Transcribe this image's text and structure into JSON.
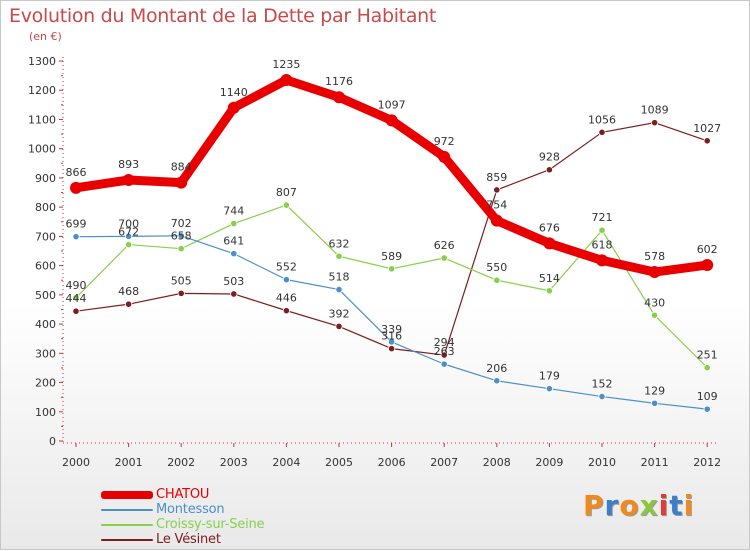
{
  "header": {
    "title": "Evolution du Montant de la Dette par Habitant",
    "unit": "(en €)"
  },
  "logo": {
    "letters": [
      "P",
      "r",
      "o",
      "x",
      "i",
      "t",
      "i"
    ],
    "colors": [
      "#f08a1c",
      "#3a7fc8",
      "#f08a1c",
      "#8cc63f",
      "#e53935",
      "#3a7fc8",
      "#f08a1c"
    ]
  },
  "chart_data": {
    "type": "line",
    "title": "Evolution du Montant de la Dette par Habitant",
    "ylabel": "(en €)",
    "xlabel": "",
    "ylim": [
      0,
      1300
    ],
    "yticks": [
      0,
      100,
      200,
      300,
      400,
      500,
      600,
      700,
      800,
      900,
      1000,
      1100,
      1200,
      1300
    ],
    "x": [
      "2000",
      "2001",
      "2002",
      "2003",
      "2004",
      "2005",
      "2006",
      "2007",
      "2008",
      "2009",
      "2010",
      "2011",
      "2012"
    ],
    "grid": false,
    "legend_position": "bottom-left",
    "series": [
      {
        "name": "CHATOU",
        "color": "#e80000",
        "values": [
          866,
          893,
          884,
          1140,
          1235,
          1176,
          1097,
          972,
          754,
          676,
          618,
          578,
          602
        ]
      },
      {
        "name": "Montesson",
        "color": "#4a8fc9",
        "values": [
          699,
          700,
          702,
          641,
          552,
          518,
          339,
          263,
          206,
          179,
          152,
          129,
          109
        ]
      },
      {
        "name": "Croissy-sur-Seine",
        "color": "#86d04a",
        "values": [
          490,
          672,
          658,
          744,
          807,
          632,
          589,
          626,
          550,
          514,
          721,
          430,
          251
        ]
      },
      {
        "name": "Le Vésinet",
        "color": "#7a1e1e",
        "values": [
          444,
          468,
          505,
          503,
          446,
          392,
          316,
          294,
          859,
          928,
          1056,
          1089,
          1027
        ]
      }
    ]
  }
}
